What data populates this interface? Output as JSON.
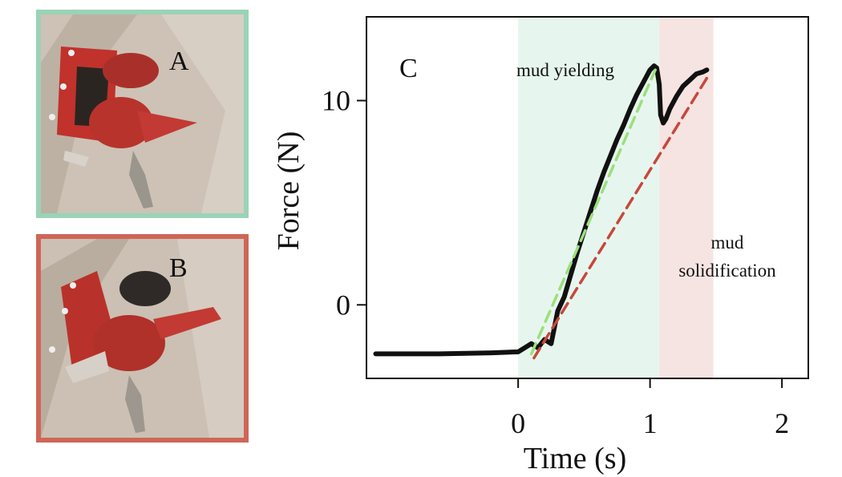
{
  "panels": {
    "a": {
      "letter": "A",
      "border_color": "#9ad3b6"
    },
    "b": {
      "letter": "B",
      "border_color": "#cf6656"
    }
  },
  "chart_data": {
    "type": "line",
    "panel_letter": "C",
    "title": "",
    "xlabel": "Time (s)",
    "ylabel": "Force (N)",
    "xlim": [
      -1.15,
      2.2
    ],
    "ylim": [
      -3.6,
      14.1
    ],
    "xticks": [
      0,
      1,
      2
    ],
    "yticks": [
      0,
      10
    ],
    "grid": false,
    "regions": [
      {
        "label": "mud yielding",
        "x0": 0.0,
        "x1": 1.07,
        "color": "#e6f6ee"
      },
      {
        "label_lines": [
          "mud",
          "solidification"
        ],
        "x0": 1.07,
        "x1": 1.48,
        "color": "#f6e4e2"
      }
    ],
    "series": [
      {
        "style": "measured",
        "color": "#111111",
        "x": [
          -1.08,
          -0.6,
          -0.2,
          0.0,
          0.05,
          0.1,
          0.15,
          0.2,
          0.25,
          0.3,
          0.35,
          0.4,
          0.45,
          0.5,
          0.55,
          0.6,
          0.65,
          0.7,
          0.75,
          0.8,
          0.85,
          0.9,
          0.95,
          1.0,
          1.03,
          1.05,
          1.07,
          1.08,
          1.1,
          1.12,
          1.15,
          1.2,
          1.25,
          1.3,
          1.35,
          1.4,
          1.43
        ],
        "y": [
          -2.4,
          -2.4,
          -2.35,
          -2.3,
          -2.1,
          -1.9,
          -2.1,
          -1.7,
          -1.9,
          -0.3,
          0.4,
          1.5,
          2.6,
          3.6,
          4.6,
          5.6,
          6.5,
          7.3,
          8.1,
          8.8,
          9.6,
          10.3,
          10.9,
          11.5,
          11.7,
          11.6,
          10.8,
          9.3,
          8.9,
          9.1,
          9.6,
          10.2,
          10.7,
          11.0,
          11.3,
          11.4,
          11.5
        ]
      },
      {
        "style": "dashed-fit",
        "color": "#9be07c",
        "x": [
          0.1,
          1.04
        ],
        "y": [
          -2.4,
          11.5
        ]
      },
      {
        "style": "dashed-fit",
        "color": "#c8473b",
        "x": [
          0.12,
          1.44
        ],
        "y": [
          -2.6,
          11.2
        ]
      }
    ]
  }
}
